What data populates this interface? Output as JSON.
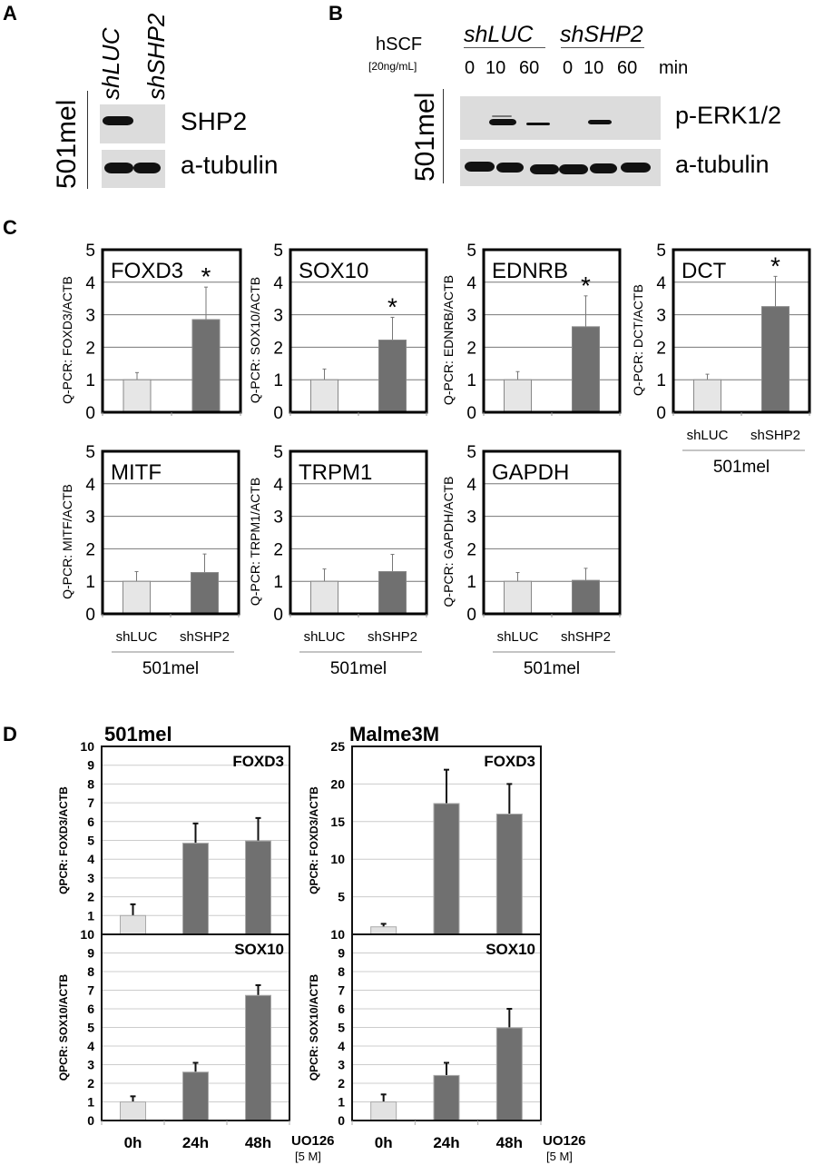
{
  "panel_a": {
    "letter": "A",
    "cell_line": "501mel",
    "lanes": [
      "shLUC",
      "shSHP2"
    ],
    "blots": [
      {
        "label": "SHP2",
        "band_intensity": [
          1.0,
          0.0
        ]
      },
      {
        "label": "a-tubulin",
        "band_intensity": [
          1.0,
          1.0
        ]
      }
    ]
  },
  "panel_b": {
    "letter": "B",
    "treatment": "hSCF",
    "treatment_conc": "[20ng/mL]",
    "groups": [
      "shLUC",
      "shSHP2"
    ],
    "timepoints": [
      "0",
      "10",
      "60",
      "0",
      "10",
      "60"
    ],
    "time_unit": "min",
    "cell_line": "501mel",
    "blots": [
      {
        "label": "p-ERK1/2",
        "band_intensity": [
          0.0,
          1.0,
          0.4,
          0.0,
          0.6,
          0.0
        ]
      },
      {
        "label": "a-tubulin",
        "band_intensity": [
          1.0,
          1.0,
          1.0,
          1.0,
          1.0,
          1.0
        ]
      }
    ]
  },
  "panel_c": {
    "letter": "C",
    "categories": [
      "shLUC",
      "shSHP2"
    ],
    "group_label": "501mel",
    "colors": {
      "shLUC": "#e6e6e6",
      "shSHP2": "#707070"
    }
  },
  "panel_d": {
    "letter": "D",
    "x_axis_note": "UO126",
    "x_axis_conc": "[5  M]"
  },
  "chart_data": [
    {
      "type": "bar",
      "panel": "C",
      "title": "FOXD3",
      "ylabel": "Q-PCR: FOXD3/ACTB",
      "categories": [
        "shLUC",
        "shSHP2"
      ],
      "values": [
        1.0,
        2.85
      ],
      "errors": [
        0.22,
        1.0
      ],
      "significant": [
        false,
        true
      ],
      "significance_mark": "*",
      "ylim": [
        0,
        5
      ],
      "yticks": [
        0,
        1,
        2,
        3,
        4,
        5
      ],
      "grid": true
    },
    {
      "type": "bar",
      "panel": "C",
      "title": "SOX10",
      "ylabel": "Q-PCR: SOX10/ACTB",
      "categories": [
        "shLUC",
        "shSHP2"
      ],
      "values": [
        1.0,
        2.22
      ],
      "errors": [
        0.33,
        0.7
      ],
      "significant": [
        false,
        true
      ],
      "significance_mark": "*",
      "ylim": [
        0,
        5
      ],
      "yticks": [
        0,
        1,
        2,
        3,
        4,
        5
      ],
      "grid": true
    },
    {
      "type": "bar",
      "panel": "C",
      "title": "EDNRB",
      "ylabel": "Q-PCR: EDNRB/ACTB",
      "categories": [
        "shLUC",
        "shSHP2"
      ],
      "values": [
        1.0,
        2.63
      ],
      "errors": [
        0.25,
        0.95
      ],
      "significant": [
        false,
        true
      ],
      "significance_mark": "*",
      "ylim": [
        0,
        5
      ],
      "yticks": [
        0,
        1,
        2,
        3,
        4,
        5
      ],
      "grid": true
    },
    {
      "type": "bar",
      "panel": "C",
      "title": "DCT",
      "ylabel": "Q-PCR: DCT/ACTB",
      "categories": [
        "shLUC",
        "shSHP2"
      ],
      "values": [
        1.0,
        3.25
      ],
      "errors": [
        0.17,
        0.93
      ],
      "significant": [
        false,
        true
      ],
      "significance_mark": "*",
      "ylim": [
        0,
        5
      ],
      "yticks": [
        0,
        1,
        2,
        3,
        4,
        5
      ],
      "grid": true,
      "group_label": "501mel"
    },
    {
      "type": "bar",
      "panel": "C",
      "title": "MITF",
      "ylabel": "Q-PCR: MITF/ACTB",
      "categories": [
        "shLUC",
        "shSHP2"
      ],
      "values": [
        1.0,
        1.27
      ],
      "errors": [
        0.3,
        0.57
      ],
      "significant": [
        false,
        false
      ],
      "ylim": [
        0,
        5
      ],
      "yticks": [
        0,
        1,
        2,
        3,
        4,
        5
      ],
      "grid": true,
      "group_label": "501mel"
    },
    {
      "type": "bar",
      "panel": "C",
      "title": "TRPM1",
      "ylabel": "Q-PCR: TRPM1/ACTB",
      "categories": [
        "shLUC",
        "shSHP2"
      ],
      "values": [
        1.0,
        1.3
      ],
      "errors": [
        0.38,
        0.53
      ],
      "significant": [
        false,
        false
      ],
      "ylim": [
        0,
        5
      ],
      "yticks": [
        0,
        1,
        2,
        3,
        4,
        5
      ],
      "grid": true,
      "group_label": "501mel"
    },
    {
      "type": "bar",
      "panel": "C",
      "title": "GAPDH",
      "ylabel": "Q-PCR:  GAPDH/ACTB",
      "categories": [
        "shLUC",
        "shSHP2"
      ],
      "values": [
        1.0,
        1.03
      ],
      "errors": [
        0.27,
        0.37
      ],
      "significant": [
        false,
        false
      ],
      "ylim": [
        0,
        5
      ],
      "yticks": [
        0,
        1,
        2,
        3,
        4,
        5
      ],
      "grid": true,
      "group_label": "501mel"
    },
    {
      "type": "bar",
      "panel": "D",
      "cell_line": "501mel",
      "title": "FOXD3",
      "ylabel": "QPCR: FOXD3/ACTB",
      "categories": [
        "0h",
        "24h",
        "48h"
      ],
      "values": [
        1.0,
        4.85,
        4.97
      ],
      "errors": [
        0.6,
        1.05,
        1.22
      ],
      "ylim": [
        0,
        10
      ],
      "yticks": [
        1,
        2,
        3,
        4,
        5,
        6,
        7,
        8,
        9,
        10
      ],
      "grid": true
    },
    {
      "type": "bar",
      "panel": "D",
      "cell_line": "501mel",
      "title": "SOX10",
      "ylabel": "QPCR: SOX10/ACTB",
      "categories": [
        "0h",
        "24h",
        "48h"
      ],
      "values": [
        1.0,
        2.6,
        6.72
      ],
      "errors": [
        0.3,
        0.5,
        0.55
      ],
      "ylim": [
        0,
        10
      ],
      "yticks": [
        0,
        1,
        2,
        3,
        4,
        5,
        6,
        7,
        8,
        9,
        10
      ],
      "grid": true
    },
    {
      "type": "bar",
      "panel": "D",
      "cell_line": "Malme3M",
      "title": "FOXD3",
      "ylabel": "QPCR: FOXD3/ACTB",
      "categories": [
        "0h",
        "24h",
        "48h"
      ],
      "values": [
        1.0,
        17.4,
        16.0
      ],
      "errors": [
        0.4,
        4.5,
        4.0
      ],
      "ylim": [
        0,
        25
      ],
      "yticks": [
        5,
        10,
        15,
        20,
        25
      ],
      "ytick_labels": [
        "5",
        "10",
        "15",
        "20",
        "25"
      ],
      "grid": true
    },
    {
      "type": "bar",
      "panel": "D",
      "cell_line": "Malme3M",
      "title": "SOX10",
      "ylabel": "QPCR: SOX10/ACTB",
      "categories": [
        "0h",
        "24h",
        "48h"
      ],
      "values": [
        1.0,
        2.42,
        4.98
      ],
      "errors": [
        0.4,
        0.68,
        1.02
      ],
      "ylim": [
        0,
        10
      ],
      "yticks": [
        0,
        1,
        2,
        3,
        4,
        5,
        6,
        7,
        8,
        9,
        10
      ],
      "grid": true
    }
  ]
}
